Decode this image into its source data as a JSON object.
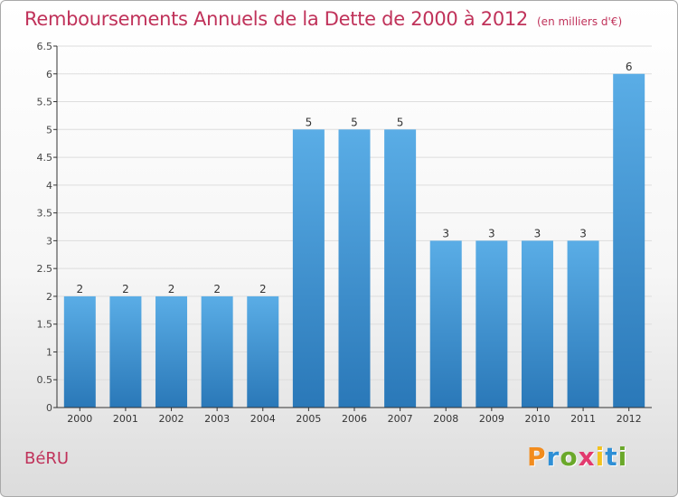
{
  "chart_data": {
    "type": "bar",
    "title": "Remboursements Annuels de la Dette de 2000 à 2012",
    "subtitle": "(en milliers d'€)",
    "categories": [
      "2000",
      "2001",
      "2002",
      "2003",
      "2004",
      "2005",
      "2006",
      "2007",
      "2008",
      "2009",
      "2010",
      "2011",
      "2012"
    ],
    "values": [
      2,
      2,
      2,
      2,
      2,
      5,
      5,
      5,
      3,
      3,
      3,
      3,
      6
    ],
    "value_labels": [
      "2",
      "2",
      "2",
      "2",
      "2",
      "5",
      "5",
      "5",
      "3",
      "3",
      "3",
      "3",
      "6"
    ],
    "ylim": [
      0,
      6.5
    ],
    "yticks": [
      0,
      0.5,
      1,
      1.5,
      2,
      2.5,
      3,
      3.5,
      4,
      4.5,
      5,
      5.5,
      6,
      6.5
    ],
    "ytick_labels": [
      "0",
      "0.5",
      "1",
      "1.5",
      "2",
      "2.5",
      "3",
      "3.5",
      "4",
      "4.5",
      "5",
      "5.5",
      "6",
      "6.5"
    ],
    "grid": true,
    "legend": "none",
    "colors": {
      "bar_top": "#5aade6",
      "bar_bottom": "#2a78b8",
      "title": "#c0325a",
      "axis": "#333333"
    }
  },
  "location_label": "BéRU",
  "logo": {
    "letters": [
      "P",
      "r",
      "o",
      "x",
      "i",
      "t",
      "i"
    ]
  }
}
